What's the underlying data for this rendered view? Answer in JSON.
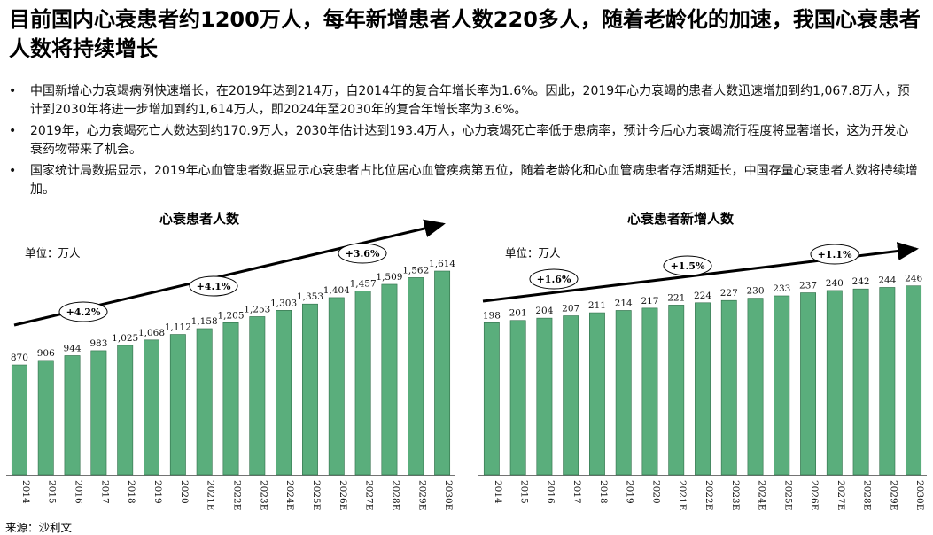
{
  "title": "目前国内心衰患者约1200万人，每年新增患者人数220多人，随着老龄化的加速，我国心衰患者人数将持续增长",
  "bullets": [
    "中国新增心力衰竭病例快速增长，在2019年达到214万，自2014年的复合年增长率为1.6%。因此，2019年心力衰竭的患者人数迅速增加到约1,067.8万人，预计到2030年将进一步增加到约1,614万人，即2024年至2030年的复合年增长率为3.6%。",
    "2019年，心力衰竭死亡人数达到约170.9万人，2030年估计达到193.4万人，心力衰竭死亡率低于患病率，预计今后心力衰竭流行程度将显著增长，这为开发心衰药物带来了机会。",
    "国家统计局数据显示，2019年心血管患者数据显示心衰患者占比位居心血管疾病第五位，随着老龄化和心血管病患者存活期延长，中国存量心衰患者人数将持续增加。"
  ],
  "source": "来源：沙利文",
  "colors": {
    "bar": "#5aae7c",
    "bar_stroke": "#2f6d48",
    "arrow": "#000000"
  },
  "chart_data": [
    {
      "type": "bar",
      "title": "心衰患者人数",
      "unit": "单位：万人",
      "categories": [
        "2014",
        "2015",
        "2016",
        "2017",
        "2018",
        "2019",
        "2020",
        "2021E",
        "2022E",
        "2023E",
        "2024E",
        "2025E",
        "2026E",
        "2027E",
        "2028E",
        "2029E",
        "2030E"
      ],
      "values": [
        870,
        906,
        944,
        983,
        1025,
        1068,
        1112,
        1158,
        1205,
        1253,
        1303,
        1353,
        1404,
        1457,
        1509,
        1562,
        1614
      ],
      "value_labels": [
        "870",
        "906",
        "944",
        "983",
        "1,025",
        "1,068",
        "1,112",
        "1,158",
        "1,205",
        "1,253",
        "1,303",
        "1,353",
        "1,404",
        "1,457",
        "1,509",
        "1,562",
        "1,614"
      ],
      "cagr_labels": [
        "+4.2%",
        "+4.1%",
        "+3.6%"
      ],
      "ylim": [
        0,
        1750
      ]
    },
    {
      "type": "bar",
      "title": "心衰患者新增人数",
      "unit": "单位：万人",
      "categories": [
        "2014",
        "2015",
        "2016",
        "2017",
        "2018",
        "2019",
        "2020",
        "2021E",
        "2022E",
        "2023E",
        "2024E",
        "2025E",
        "2026E",
        "2027E",
        "2028E",
        "2029E",
        "2030E"
      ],
      "values": [
        198,
        201,
        204,
        207,
        211,
        214,
        217,
        221,
        224,
        227,
        230,
        233,
        237,
        240,
        242,
        244,
        246
      ],
      "value_labels": [
        "198",
        "201",
        "204",
        "207",
        "211",
        "214",
        "217",
        "221",
        "224",
        "227",
        "230",
        "233",
        "237",
        "240",
        "242",
        "244",
        "246"
      ],
      "cagr_labels": [
        "+1.6%",
        "+1.5%",
        "+1.1%"
      ],
      "ylim": [
        0,
        290
      ]
    }
  ]
}
